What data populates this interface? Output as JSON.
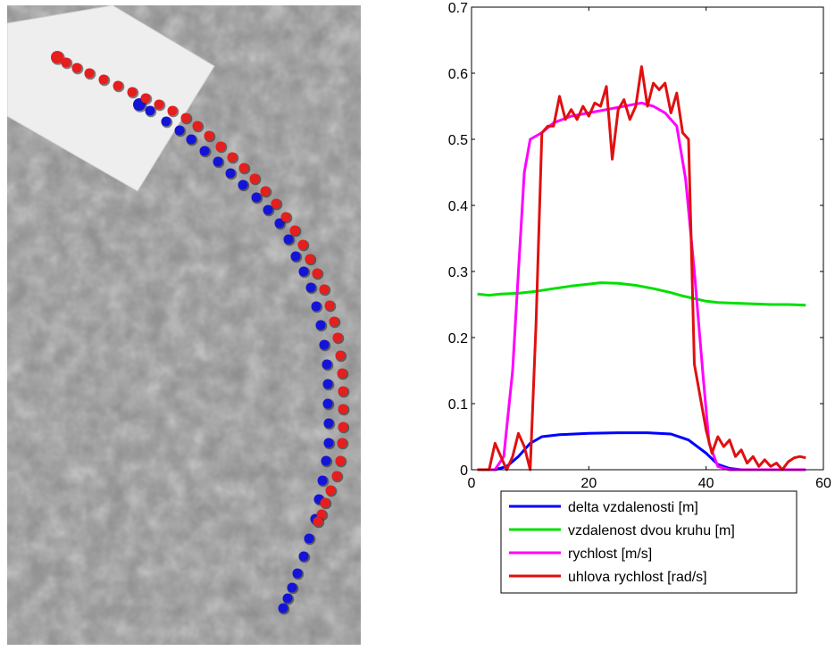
{
  "colors": {
    "background": "#ffffff",
    "floor": "#8a8a8a",
    "paper": "#eeeeee",
    "blue_marker": "#1414d8",
    "red_marker": "#e51e1e"
  },
  "photo": {
    "blue_track": [
      [
        148,
        111
      ],
      [
        160,
        118
      ],
      [
        178,
        130
      ],
      [
        193,
        140
      ],
      [
        206,
        150
      ],
      [
        221,
        163
      ],
      [
        236,
        175
      ],
      [
        250,
        188
      ],
      [
        264,
        201
      ],
      [
        279,
        215
      ],
      [
        292,
        229
      ],
      [
        305,
        244
      ],
      [
        315,
        262
      ],
      [
        323,
        281
      ],
      [
        332,
        298
      ],
      [
        340,
        316
      ],
      [
        346,
        337
      ],
      [
        351,
        358
      ],
      [
        355,
        380
      ],
      [
        358,
        402
      ],
      [
        359,
        424
      ],
      [
        359,
        446
      ],
      [
        360,
        468
      ],
      [
        360,
        490
      ],
      [
        357,
        510
      ],
      [
        353,
        532
      ],
      [
        349,
        553
      ],
      [
        345,
        575
      ],
      [
        338,
        597
      ],
      [
        332,
        617
      ],
      [
        325,
        636
      ],
      [
        319,
        652
      ],
      [
        314,
        664
      ],
      [
        309,
        675
      ]
    ],
    "red_track": [
      [
        56,
        58
      ],
      [
        66,
        64
      ],
      [
        78,
        70
      ],
      [
        92,
        76
      ],
      [
        108,
        83
      ],
      [
        124,
        90
      ],
      [
        140,
        97
      ],
      [
        155,
        104
      ],
      [
        170,
        111
      ],
      [
        185,
        118
      ],
      [
        200,
        126
      ],
      [
        213,
        135
      ],
      [
        226,
        146
      ],
      [
        239,
        158
      ],
      [
        252,
        170
      ],
      [
        265,
        182
      ],
      [
        277,
        194
      ],
      [
        289,
        208
      ],
      [
        301,
        222
      ],
      [
        312,
        237
      ],
      [
        322,
        252
      ],
      [
        331,
        268
      ],
      [
        339,
        284
      ],
      [
        347,
        300
      ],
      [
        355,
        318
      ],
      [
        361,
        336
      ],
      [
        366,
        354
      ],
      [
        370,
        372
      ],
      [
        373,
        392
      ],
      [
        375,
        412
      ],
      [
        376,
        432
      ],
      [
        376,
        452
      ],
      [
        376,
        472
      ],
      [
        375,
        490
      ],
      [
        373,
        510
      ],
      [
        369,
        527
      ],
      [
        362,
        543
      ],
      [
        356,
        557
      ],
      [
        352,
        570
      ],
      [
        348,
        578
      ]
    ]
  },
  "chart_data": {
    "type": "line",
    "xlim": [
      0,
      60
    ],
    "ylim": [
      0,
      0.7
    ],
    "xticks": [
      "0",
      "20",
      "40",
      "60"
    ],
    "yticks": [
      "0",
      "0.1",
      "0.2",
      "0.3",
      "0.4",
      "0.5",
      "0.6",
      "0.7"
    ],
    "legend_position": "bottom",
    "series": [
      {
        "name": "delta vzdalenosti [m]",
        "color": "#0000ff",
        "points": [
          [
            2,
            0
          ],
          [
            4,
            0
          ],
          [
            6,
            0.005
          ],
          [
            8,
            0.02
          ],
          [
            10,
            0.04
          ],
          [
            12,
            0.05
          ],
          [
            15,
            0.053
          ],
          [
            20,
            0.055
          ],
          [
            25,
            0.056
          ],
          [
            30,
            0.056
          ],
          [
            34,
            0.054
          ],
          [
            37,
            0.045
          ],
          [
            40,
            0.025
          ],
          [
            42,
            0.008
          ],
          [
            44,
            0.002
          ],
          [
            46,
            0
          ],
          [
            56,
            0
          ]
        ]
      },
      {
        "name": "vzdalenost dvou kruhu [m]",
        "color": "#00e000",
        "points": [
          [
            1,
            0.266
          ],
          [
            3,
            0.264
          ],
          [
            5,
            0.266
          ],
          [
            8,
            0.267
          ],
          [
            11,
            0.27
          ],
          [
            14,
            0.274
          ],
          [
            17,
            0.278
          ],
          [
            20,
            0.281
          ],
          [
            22,
            0.283
          ],
          [
            25,
            0.282
          ],
          [
            28,
            0.279
          ],
          [
            31,
            0.274
          ],
          [
            34,
            0.268
          ],
          [
            36,
            0.263
          ],
          [
            38,
            0.259
          ],
          [
            40,
            0.255
          ],
          [
            42,
            0.253
          ],
          [
            45,
            0.252
          ],
          [
            48,
            0.251
          ],
          [
            51,
            0.25
          ],
          [
            54,
            0.25
          ],
          [
            57,
            0.249
          ]
        ]
      },
      {
        "name": "rychlost [m/s]",
        "color": "#ff00ff",
        "points": [
          [
            1,
            0
          ],
          [
            4,
            0
          ],
          [
            5.5,
            0.02
          ],
          [
            7,
            0.15
          ],
          [
            8,
            0.3
          ],
          [
            9,
            0.45
          ],
          [
            10,
            0.5
          ],
          [
            12,
            0.51
          ],
          [
            14,
            0.525
          ],
          [
            17,
            0.535
          ],
          [
            20,
            0.54
          ],
          [
            23,
            0.545
          ],
          [
            26,
            0.55
          ],
          [
            29,
            0.555
          ],
          [
            31,
            0.55
          ],
          [
            33,
            0.54
          ],
          [
            35,
            0.52
          ],
          [
            36.5,
            0.44
          ],
          [
            38,
            0.3
          ],
          [
            39.5,
            0.14
          ],
          [
            40.5,
            0.04
          ],
          [
            42,
            0.005
          ],
          [
            44,
            0
          ],
          [
            57,
            0
          ]
        ]
      },
      {
        "name": "uhlova rychlost [rad/s]",
        "color": "#e01010",
        "points": [
          [
            1,
            0
          ],
          [
            3,
            0
          ],
          [
            4,
            0.04
          ],
          [
            5,
            0.02
          ],
          [
            6,
            0
          ],
          [
            7,
            0.02
          ],
          [
            8,
            0.055
          ],
          [
            9,
            0.035
          ],
          [
            10,
            0
          ],
          [
            11,
            0.22
          ],
          [
            12,
            0.51
          ],
          [
            13,
            0.52
          ],
          [
            14,
            0.52
          ],
          [
            15,
            0.565
          ],
          [
            16,
            0.53
          ],
          [
            17,
            0.545
          ],
          [
            18,
            0.53
          ],
          [
            19,
            0.55
          ],
          [
            20,
            0.535
          ],
          [
            21,
            0.555
          ],
          [
            22,
            0.55
          ],
          [
            23,
            0.58
          ],
          [
            24,
            0.47
          ],
          [
            25,
            0.545
          ],
          [
            26,
            0.56
          ],
          [
            27,
            0.53
          ],
          [
            28,
            0.55
          ],
          [
            29,
            0.61
          ],
          [
            30,
            0.55
          ],
          [
            31,
            0.585
          ],
          [
            32,
            0.575
          ],
          [
            33,
            0.585
          ],
          [
            34,
            0.54
          ],
          [
            35,
            0.57
          ],
          [
            36,
            0.51
          ],
          [
            37,
            0.5
          ],
          [
            37.5,
            0.33
          ],
          [
            38,
            0.16
          ],
          [
            39,
            0.11
          ],
          [
            40,
            0.06
          ],
          [
            41,
            0.025
          ],
          [
            42,
            0.05
          ],
          [
            43,
            0.035
          ],
          [
            44,
            0.045
          ],
          [
            45,
            0.02
          ],
          [
            46,
            0.03
          ],
          [
            47,
            0.01
          ],
          [
            48,
            0.02
          ],
          [
            49,
            0.005
          ],
          [
            50,
            0.015
          ],
          [
            51,
            0.005
          ],
          [
            52,
            0.01
          ],
          [
            53,
            0
          ],
          [
            54,
            0.012
          ],
          [
            55,
            0.018
          ],
          [
            56,
            0.02
          ],
          [
            57,
            0.018
          ]
        ]
      }
    ]
  }
}
